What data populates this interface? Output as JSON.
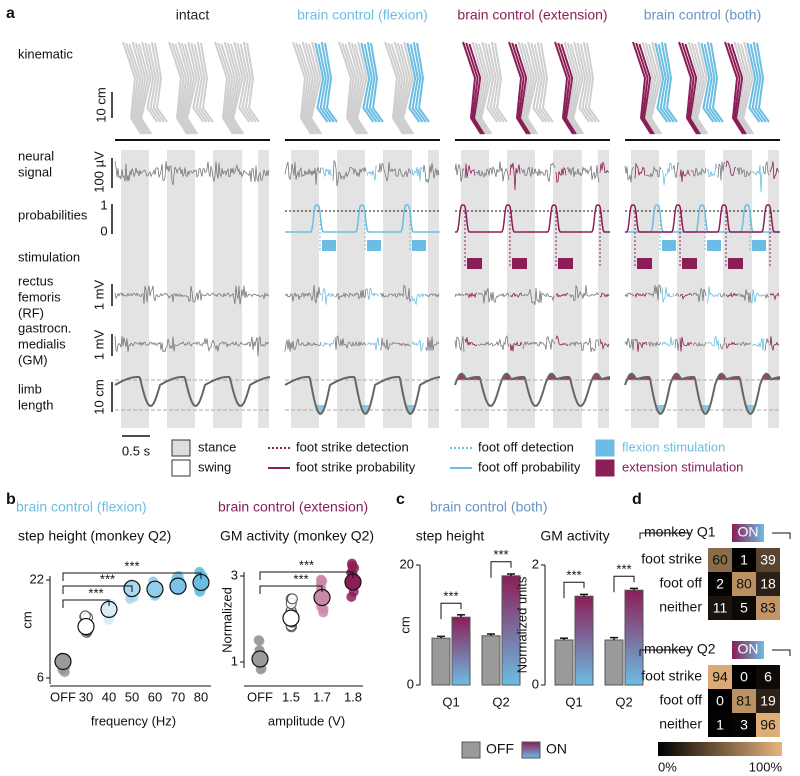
{
  "panel_a": {
    "label": "a",
    "columns": [
      "intact",
      "brain control (flexion)",
      "brain control (extension)",
      "brain control (both)"
    ],
    "column_colors": [
      "#222222",
      "#6cbde3",
      "#8b1e57",
      "#6a93c4"
    ],
    "rows": [
      [
        "kinematic"
      ],
      [
        "neural",
        "signal"
      ],
      [
        "probabilities"
      ],
      [
        "stimulation"
      ],
      [
        "rectus",
        "femoris",
        "(RF)"
      ],
      [
        "gastrocn.",
        "medialis",
        "(GM)"
      ],
      [
        "limb",
        "length"
      ]
    ],
    "scales": [
      "10 cm",
      "100 µV",
      "1",
      "0",
      "1 mV",
      "1 mV",
      "10 cm",
      "0.5 s"
    ],
    "legend": [
      "stance",
      "swing",
      "foot strike detection",
      "foot strike probability",
      "foot off detection",
      "foot off probability",
      "flexion stimulation",
      "extension stimulation"
    ]
  },
  "panel_b": {
    "label": "b",
    "charts": [
      {
        "type": "scatter",
        "title": "brain control (flexion)",
        "title_color": "#6cbde3",
        "subtitle": "step height (monkey Q2)",
        "y_label": "cm",
        "x_label": "frequency (Hz)",
        "categories": [
          "OFF",
          "30",
          "40",
          "50",
          "60",
          "70",
          "80"
        ],
        "values": [
          8.7,
          14.4,
          17.2,
          20.6,
          20.5,
          21.0,
          21.6
        ],
        "colors": [
          "#9a9a9a",
          "#ffffff",
          "#d8ecf6",
          "#a9d8ef",
          "#92cdea",
          "#7cc4e6",
          "#6cbde3"
        ],
        "ylim": [
          6,
          22
        ],
        "yticks": [
          6,
          22
        ],
        "significance": [
          "***",
          "***",
          "***"
        ]
      },
      {
        "type": "scatter",
        "title": "brain control (extension)",
        "title_color": "#8b1e57",
        "subtitle": "GM activity (monkey Q2)",
        "y_label": "Normalized",
        "x_label": "amplitude (V)",
        "categories": [
          "OFF",
          "1.5",
          "1.7",
          "1.8"
        ],
        "values": [
          1.07,
          2.02,
          2.5,
          2.86
        ],
        "colors": [
          "#9a9a9a",
          "#ffffff",
          "#c98aa9",
          "#8b1e57"
        ],
        "ylim": [
          1,
          3
        ],
        "yticks": [
          1,
          3
        ],
        "significance": [
          "***",
          "***"
        ]
      }
    ]
  },
  "panel_c": {
    "label": "c",
    "title": "brain control (both)",
    "charts": [
      {
        "type": "bar",
        "subtitle": "step height",
        "y_label": "cm",
        "categories": [
          "Q1",
          "Q2"
        ],
        "series": [
          {
            "name": "OFF",
            "color": "#9a9a9a",
            "values": [
              7.8,
              8.2
            ],
            "errors": [
              0.3,
              0.3
            ]
          },
          {
            "name": "ON",
            "color": "#8b1e57",
            "values": [
              11.3,
              18.2
            ],
            "errors": [
              0.4,
              0.3
            ]
          }
        ],
        "ylim": [
          0,
          20
        ],
        "yticks": [
          0,
          20
        ],
        "significance": [
          "***",
          "***"
        ]
      },
      {
        "type": "bar",
        "subtitle": "GM activity",
        "y_label": "Normalized units",
        "categories": [
          "Q1",
          "Q2"
        ],
        "series": [
          {
            "name": "OFF",
            "color": "#9a9a9a",
            "values": [
              0.75,
              0.75
            ],
            "errors": [
              0.03,
              0.04
            ]
          },
          {
            "name": "ON",
            "color": "#8b1e57",
            "values": [
              1.48,
              1.58
            ],
            "errors": [
              0.03,
              0.03
            ]
          }
        ],
        "ylim": [
          0,
          2
        ],
        "yticks": [
          0,
          2
        ],
        "significance": [
          "***",
          "***"
        ]
      }
    ]
  },
  "panel_d": {
    "label": "d",
    "on_label": "ON",
    "rows": [
      "foot strike",
      "foot off",
      "neither"
    ],
    "matrices": [
      {
        "title": "monkey Q1",
        "values": [
          [
            60,
            1,
            39
          ],
          [
            2,
            80,
            18
          ],
          [
            11,
            5,
            83
          ]
        ]
      },
      {
        "title": "monkey Q2",
        "values": [
          [
            94,
            0,
            6
          ],
          [
            0,
            81,
            19
          ],
          [
            1,
            3,
            96
          ]
        ]
      }
    ],
    "colorbar": {
      "range": [
        0,
        100
      ],
      "labels": [
        "0%",
        "100%"
      ],
      "colors": [
        "#000000",
        "#e8b47c"
      ]
    }
  }
}
